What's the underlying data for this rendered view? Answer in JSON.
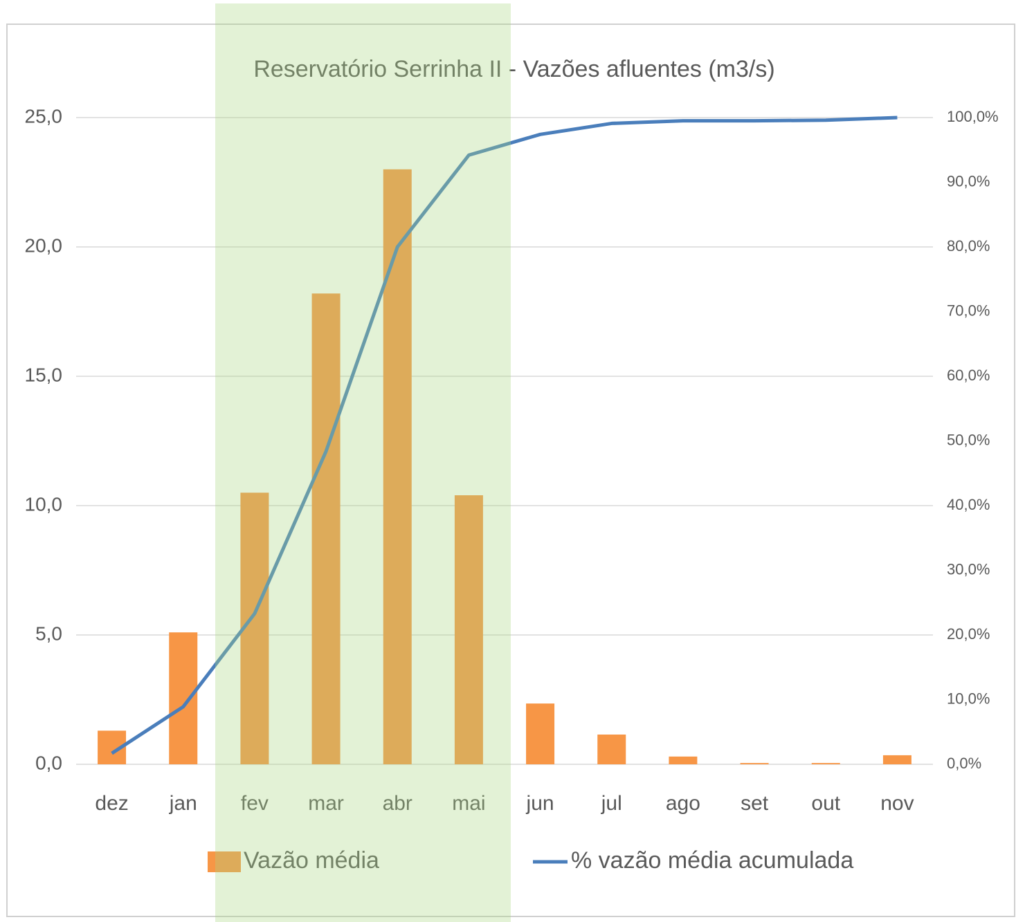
{
  "chart_data": {
    "type": "bar",
    "title": "Reservatório Serrinha II - Vazões afluentes (m3/s)",
    "categories": [
      "dez",
      "jan",
      "fev",
      "mar",
      "abr",
      "mai",
      "jun",
      "jul",
      "ago",
      "set",
      "out",
      "nov"
    ],
    "series": [
      {
        "name": "Vazão média",
        "type": "bar",
        "color": "#f79646",
        "values": [
          1.3,
          5.1,
          10.5,
          18.2,
          23.0,
          10.4,
          2.35,
          1.15,
          0.3,
          0.05,
          0.05,
          0.35
        ]
      },
      {
        "name": "% vazão média acumulada",
        "type": "line",
        "axis": "y2",
        "color": "#4a7ebb",
        "values": [
          1.7,
          8.9,
          23.3,
          48.4,
          80.0,
          94.2,
          97.4,
          99.1,
          99.5,
          99.5,
          99.6,
          100
        ]
      }
    ],
    "ylim": [
      0,
      25
    ],
    "yticks": [
      {
        "value": 0,
        "label": "0,0"
      },
      {
        "value": 5,
        "label": "5,0"
      },
      {
        "value": 10,
        "label": "10,0"
      },
      {
        "value": 15,
        "label": "15,0"
      },
      {
        "value": 20,
        "label": "20,0"
      },
      {
        "value": 25,
        "label": "25,0"
      }
    ],
    "y2lim": [
      0,
      100
    ],
    "y2ticks": [
      {
        "value": 0,
        "label": "0,0%"
      },
      {
        "value": 10,
        "label": "10,0%"
      },
      {
        "value": 20,
        "label": "20,0%"
      },
      {
        "value": 30,
        "label": "30,0%"
      },
      {
        "value": 40,
        "label": "40,0%"
      },
      {
        "value": 50,
        "label": "50,0%"
      },
      {
        "value": 60,
        "label": "60,0%"
      },
      {
        "value": 70,
        "label": "70,0%"
      },
      {
        "value": 80,
        "label": "80,0%"
      },
      {
        "value": 90,
        "label": "90,0%"
      },
      {
        "value": 100,
        "label": "100,0%"
      }
    ],
    "grid": true,
    "legend": "bottom"
  }
}
